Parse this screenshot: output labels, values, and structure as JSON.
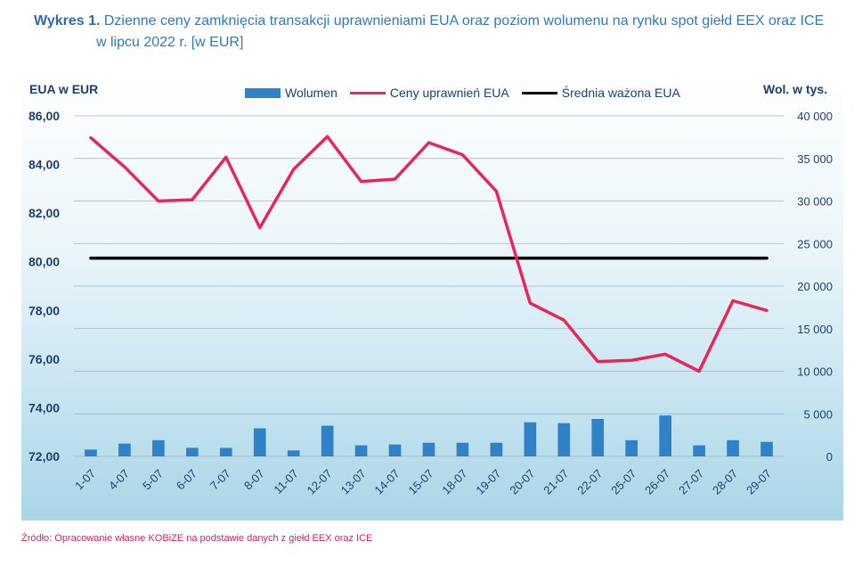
{
  "title": {
    "lead": "Wykres 1.",
    "text_line1": "Dzienne ceny zamknięcia transakcji uprawnieniami EUA oraz poziom wolumenu na rynku spot giełd EEX oraz ICE",
    "text_line2": "w lipcu 2022 r. [w EUR]"
  },
  "source": "Źródło: Opracowanie własne KOBiZE na podstawie danych z giełd EEX oraz ICE",
  "colors": {
    "volume": "#2f82c7",
    "price": "#e8265a",
    "average": "#000000"
  },
  "chart_data": {
    "type": "bar",
    "ylabel_left": "EUA w EUR",
    "ylabel_right": "Wol. w tys.",
    "ylim_left": [
      72,
      86
    ],
    "ylim_right": [
      0,
      40000
    ],
    "left_ticks": [
      "86,00",
      "84,00",
      "82,00",
      "80,00",
      "78,00",
      "76,00",
      "74,00",
      "72,00"
    ],
    "right_ticks": [
      "40 000",
      "35 000",
      "30 000",
      "25 000",
      "20 000",
      "15 000",
      "10 000",
      "5 000",
      "0"
    ],
    "legend": [
      "Wolumen",
      "Ceny uprawnień EUA",
      "Średnia ważona EUA"
    ],
    "categories": [
      "1-07",
      "4-07",
      "5-07",
      "6-07",
      "7-07",
      "8-07",
      "11-07",
      "12-07",
      "13-07",
      "14-07",
      "15-07",
      "18-07",
      "19-07",
      "20-07",
      "21-07",
      "22-07",
      "25-07",
      "26-07",
      "27-07",
      "28-07",
      "29-07"
    ],
    "series": [
      {
        "name": "Wolumen",
        "type": "bar",
        "axis": "right",
        "values": [
          800,
          1500,
          1900,
          1000,
          1000,
          3300,
          700,
          3600,
          1300,
          1400,
          1600,
          1600,
          1600,
          4000,
          3900,
          4400,
          1900,
          4800,
          1300,
          1900,
          1700
        ]
      },
      {
        "name": "Ceny uprawnień EUA",
        "type": "line",
        "axis": "left",
        "values": [
          85.1,
          83.9,
          82.5,
          82.55,
          84.3,
          81.4,
          83.8,
          85.15,
          83.3,
          83.4,
          84.9,
          84.4,
          82.9,
          78.3,
          77.6,
          75.9,
          75.95,
          76.2,
          75.5,
          78.4,
          78.0
        ]
      },
      {
        "name": "Średnia ważona EUA",
        "type": "line",
        "axis": "left",
        "values": [
          80.15,
          80.15,
          80.15,
          80.15,
          80.15,
          80.15,
          80.15,
          80.15,
          80.15,
          80.15,
          80.15,
          80.15,
          80.15,
          80.15,
          80.15,
          80.15,
          80.15,
          80.15,
          80.15,
          80.15,
          80.15
        ]
      }
    ]
  }
}
